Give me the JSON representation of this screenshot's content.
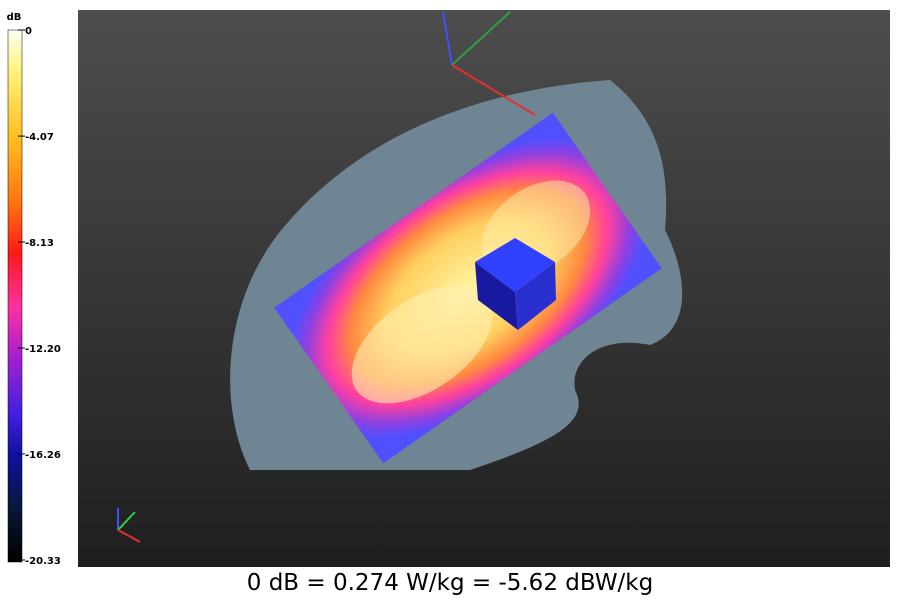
{
  "colorbar": {
    "unit": "dB",
    "range": [
      -20.33,
      0
    ],
    "ticks": [
      {
        "value": 0,
        "label": "0"
      },
      {
        "value": -4.07,
        "label": "-4.07"
      },
      {
        "value": -8.13,
        "label": "-8.13"
      },
      {
        "value": -12.2,
        "label": "-12.20"
      },
      {
        "value": -16.26,
        "label": "-16.26"
      },
      {
        "value": -20.33,
        "label": "-20.33"
      }
    ]
  },
  "caption": "0 dB = 0.274 W/kg = -5.62 dBW/kg"
}
